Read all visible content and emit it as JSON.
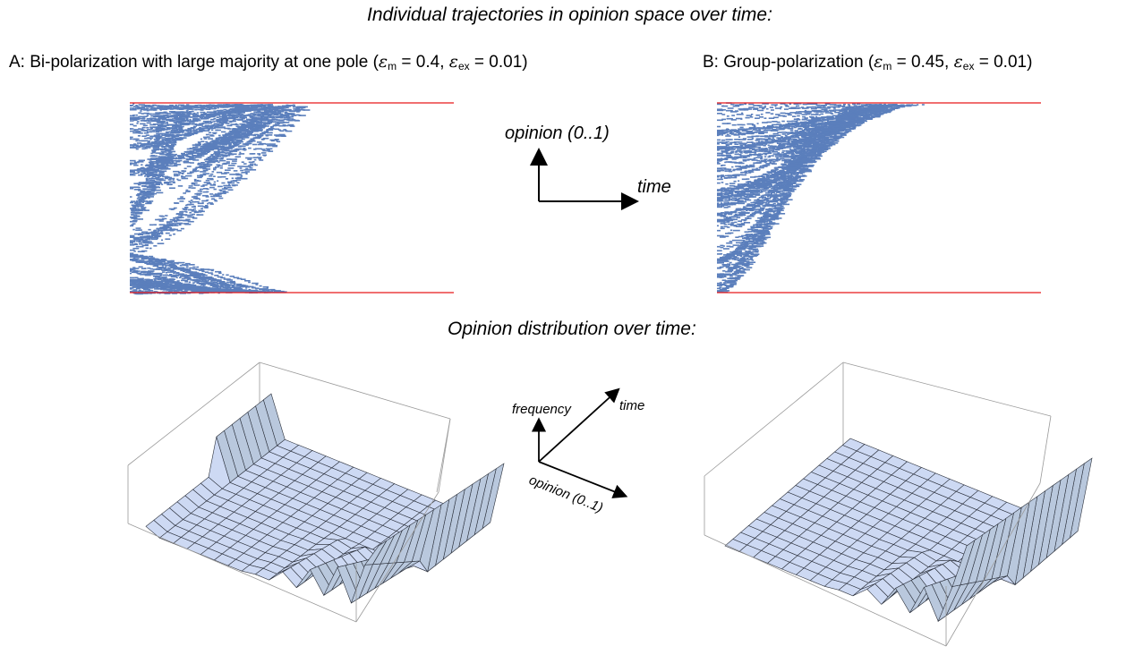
{
  "headings": {
    "trajectories": "Individual trajectories in opinion space over time:",
    "distribution": "Opinion distribution over time:"
  },
  "panel_a": {
    "prefix": "A: Bi-polarization with large majority at one pole (",
    "eps_m_symbol": "ε",
    "eps_m_sub": "m",
    "eps_m_value": " = 0.4, ",
    "eps_ex_symbol": "ε",
    "eps_ex_sub": "ex",
    "eps_ex_value": " = 0.01)"
  },
  "panel_b": {
    "prefix": "B: Group-polarization (",
    "eps_m_symbol": "ε",
    "eps_m_sub": "m",
    "eps_m_value": " = 0.45, ",
    "eps_ex_symbol": "ε",
    "eps_ex_sub": "ex",
    "eps_ex_value": " = 0.01)"
  },
  "legend_2d": {
    "y_label": "opinion (0..1)",
    "x_label": "time"
  },
  "legend_3d": {
    "z_label": "frequency",
    "y_label": "time",
    "x_label": "opinion (0..1)"
  },
  "colors": {
    "trajectory": "#5b7fbc",
    "pole": "#e8191b",
    "surface": "#c9d6f2",
    "axis": "#000000"
  }
}
